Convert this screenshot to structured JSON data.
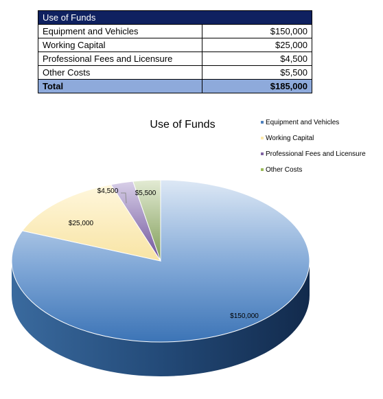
{
  "table": {
    "header": "Use of Funds",
    "rows": [
      {
        "label": "Equipment and Vehicles",
        "amount": "$150,000"
      },
      {
        "label": "Working Capital",
        "amount": "$25,000"
      },
      {
        "label": "Professional Fees and Licensure",
        "amount": "$4,500"
      },
      {
        "label": "Other Costs",
        "amount": "$5,500"
      }
    ],
    "total_label": "Total",
    "total_amount": "$185,000"
  },
  "chart_data": {
    "type": "pie",
    "title": "Use of Funds",
    "categories": [
      "Equipment and Vehicles",
      "Working Capital",
      "Professional Fees and Licensure",
      "Other Costs"
    ],
    "values": [
      150000,
      25000,
      4500,
      5500
    ],
    "data_labels": [
      "$150,000",
      "$25,000",
      "$4,500",
      "$5,500"
    ],
    "colors": [
      "#4f81bd",
      "#fde9a9",
      "#8064a2",
      "#9bbb59"
    ],
    "legend_position": "right",
    "style": "3d"
  }
}
